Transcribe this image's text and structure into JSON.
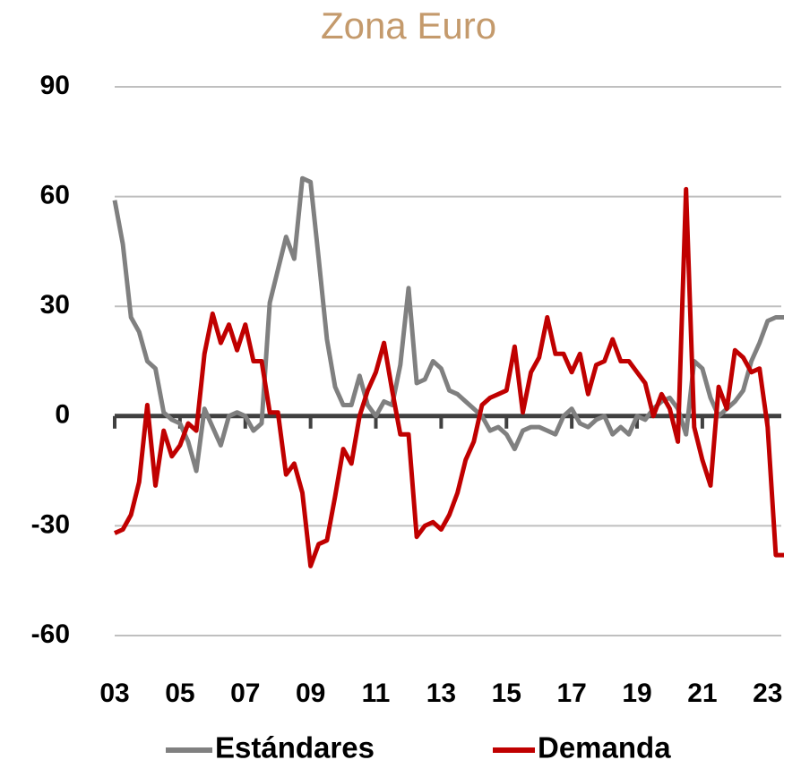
{
  "chart_data": {
    "type": "line",
    "title": "Zona Euro",
    "x": [
      2003,
      2003.25,
      2003.5,
      2003.75,
      2004,
      2004.25,
      2004.5,
      2004.75,
      2005,
      2005.25,
      2005.5,
      2005.75,
      2006,
      2006.25,
      2006.5,
      2006.75,
      2007,
      2007.25,
      2007.5,
      2007.75,
      2008,
      2008.25,
      2008.5,
      2008.75,
      2009,
      2009.25,
      2009.5,
      2009.75,
      2010,
      2010.25,
      2010.5,
      2010.75,
      2011,
      2011.25,
      2011.5,
      2011.75,
      2012,
      2012.25,
      2012.5,
      2012.75,
      2013,
      2013.25,
      2013.5,
      2013.75,
      2014,
      2014.25,
      2014.5,
      2014.75,
      2015,
      2015.25,
      2015.5,
      2015.75,
      2016,
      2016.25,
      2016.5,
      2016.75,
      2017,
      2017.25,
      2017.5,
      2017.75,
      2018,
      2018.25,
      2018.5,
      2018.75,
      2019,
      2019.25,
      2019.5,
      2019.75,
      2020,
      2020.25,
      2020.5,
      2020.75,
      2021,
      2021.25,
      2021.5,
      2021.75,
      2022,
      2022.25,
      2022.5,
      2022.75,
      2023,
      2023.25,
      2023.5
    ],
    "series": [
      {
        "name": "Estándares",
        "color": "#808080",
        "values": [
          59,
          47,
          27,
          23,
          15,
          13,
          1,
          -1,
          -2,
          -7,
          -15,
          2,
          -3,
          -8,
          0,
          1,
          0,
          -4,
          -2,
          31,
          40,
          49,
          43,
          65,
          64,
          43,
          21,
          8,
          3,
          3,
          11,
          3,
          0,
          4,
          3,
          14,
          35,
          9,
          10,
          15,
          13,
          7,
          6,
          4,
          2,
          0,
          -4,
          -3,
          -5,
          -9,
          -4,
          -3,
          -3,
          -4,
          -5,
          0,
          2,
          -2,
          -3,
          -1,
          0,
          -5,
          -3,
          -5,
          0,
          -1,
          2,
          4,
          5,
          2,
          -5,
          15,
          13,
          5,
          0,
          2,
          4,
          7,
          15,
          20,
          26,
          27,
          27
        ]
      },
      {
        "name": "Demanda",
        "color": "#c00000",
        "values": [
          -32,
          -31,
          -27,
          -18,
          3,
          -19,
          -4,
          -11,
          -8,
          -2,
          -4,
          17,
          28,
          20,
          25,
          18,
          25,
          15,
          15,
          1,
          1,
          -16,
          -13,
          -21,
          -41,
          -35,
          -34,
          -22,
          -9,
          -13,
          0,
          7,
          12,
          20,
          7,
          -5,
          -5,
          -33,
          -30,
          -29,
          -31,
          -27,
          -21,
          -12,
          -7,
          3,
          5,
          6,
          7,
          19,
          1,
          12,
          16,
          27,
          17,
          17,
          12,
          17,
          6,
          14,
          15,
          21,
          15,
          15,
          12,
          9,
          0,
          6,
          2,
          -7,
          62,
          -3,
          -12,
          -19,
          8,
          2,
          18,
          16,
          12,
          13,
          -3,
          -38,
          -38
        ]
      }
    ],
    "xlim": [
      2003,
      2023.5
    ],
    "xticks": [
      {
        "value": 2003,
        "label": "03"
      },
      {
        "value": 2005,
        "label": "05"
      },
      {
        "value": 2007,
        "label": "07"
      },
      {
        "value": 2009,
        "label": "09"
      },
      {
        "value": 2011,
        "label": "11"
      },
      {
        "value": 2013,
        "label": "13"
      },
      {
        "value": 2015,
        "label": "15"
      },
      {
        "value": 2017,
        "label": "17"
      },
      {
        "value": 2019,
        "label": "19"
      },
      {
        "value": 2021,
        "label": "21"
      },
      {
        "value": 2023,
        "label": "23"
      }
    ],
    "ylim": [
      -60,
      90
    ],
    "yticks": [
      -60,
      -30,
      0,
      30,
      60,
      90
    ],
    "grid": true
  }
}
